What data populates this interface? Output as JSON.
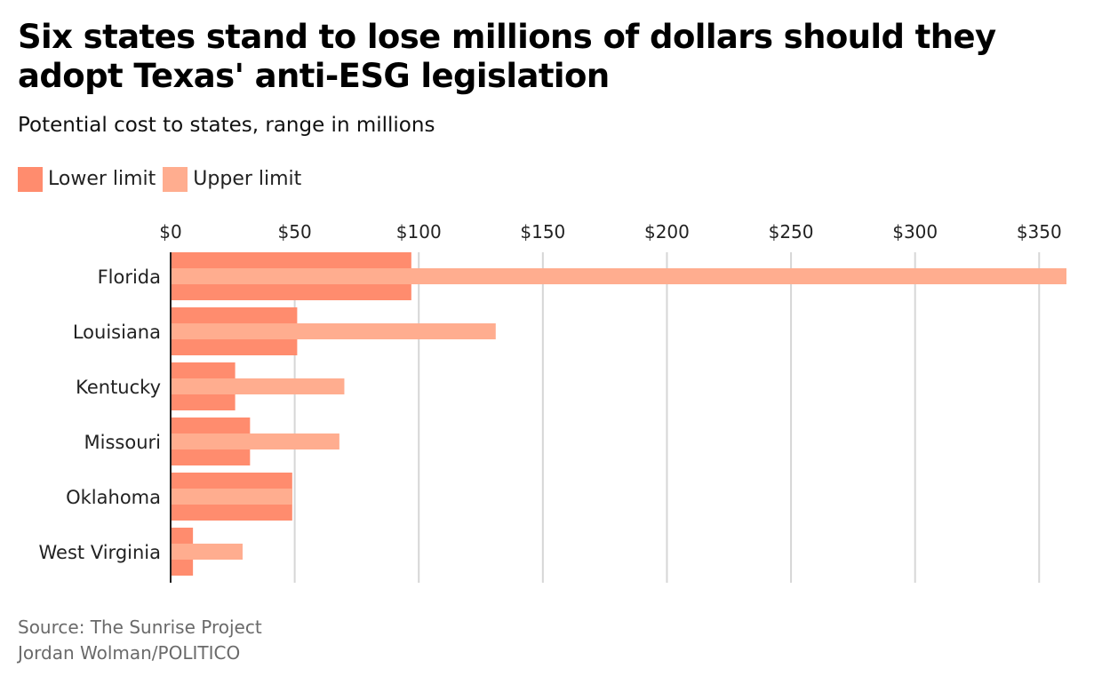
{
  "title": "Six states stand to lose millions of dollars should they adopt Texas' anti-ESG legislation",
  "subtitle": "Potential cost to states, range in millions",
  "legend": [
    {
      "label": "Lower limit",
      "color": "#ff8c6e"
    },
    {
      "label": "Upper limit",
      "color": "#ffad8f"
    }
  ],
  "footer": {
    "source": "Source: The Sunrise Project",
    "credit": "Jordan Wolman/POLITICO"
  },
  "chart_data": {
    "type": "bar",
    "orientation": "horizontal",
    "title": "Six states stand to lose millions of dollars should they adopt Texas' anti-ESG legislation",
    "subtitle": "Potential cost to states, range in millions",
    "categories": [
      "Florida",
      "Louisiana",
      "Kentucky",
      "Missouri",
      "Oklahoma",
      "West Virginia"
    ],
    "series": [
      {
        "name": "Lower limit",
        "color": "#ff8c6e",
        "values": [
          97,
          51,
          26,
          32,
          49,
          9
        ]
      },
      {
        "name": "Upper limit",
        "color": "#ffad8f",
        "values": [
          361,
          131,
          70,
          68,
          49,
          29
        ]
      }
    ],
    "xlim": [
      0,
      361
    ],
    "ticks": [
      0,
      50,
      100,
      150,
      200,
      250,
      300,
      350
    ],
    "tick_labels": [
      "$0",
      "$50",
      "$100",
      "$150",
      "$200",
      "$250",
      "$300",
      "$350"
    ],
    "grid": true,
    "legend_position": "top-left",
    "xlabel": "",
    "ylabel": ""
  }
}
